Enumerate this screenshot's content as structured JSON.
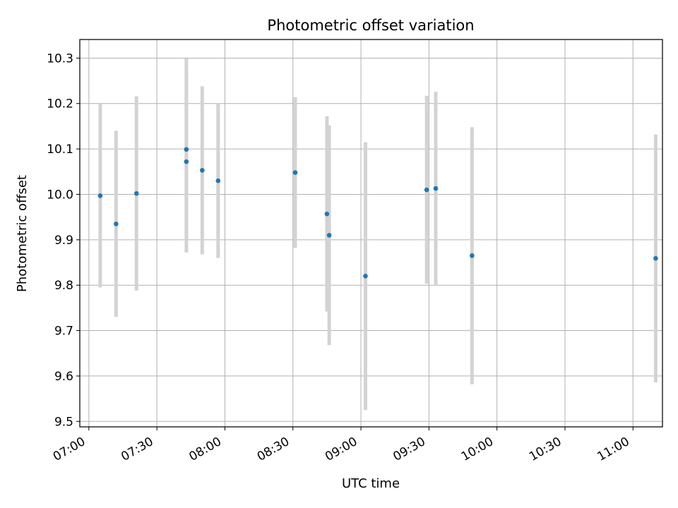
{
  "chart_data": {
    "type": "scatter",
    "title": "Photometric offset variation",
    "xlabel": "UTC time",
    "ylabel": "Photometric offset",
    "x_ticks": [
      "07:00",
      "07:30",
      "08:00",
      "08:30",
      "09:00",
      "09:30",
      "10:00",
      "10:30",
      "11:00"
    ],
    "y_ticks": [
      "9.5",
      "9.6",
      "9.7",
      "9.8",
      "9.9",
      "10.0",
      "10.1",
      "10.2",
      "10.3"
    ],
    "xlim": [
      "06:56",
      "11:13"
    ],
    "ylim": [
      9.488,
      10.341
    ],
    "grid": true,
    "point_color": "#1f77b4",
    "errorbar_color": "#d3d3d3",
    "series": [
      {
        "x": [
          "07:05",
          "07:12",
          "07:21",
          "07:43",
          "07:43",
          "07:50",
          "07:57",
          "08:31",
          "08:45",
          "08:46",
          "09:02",
          "09:29",
          "09:33",
          "09:49",
          "11:10"
        ],
        "y": [
          9.997,
          9.935,
          10.002,
          10.099,
          10.072,
          10.053,
          10.03,
          10.048,
          9.957,
          9.91,
          9.82,
          10.01,
          10.013,
          9.865,
          9.859
        ],
        "err": [
          0.202,
          0.205,
          0.214,
          0.2,
          0.2,
          0.185,
          0.17,
          0.166,
          0.215,
          0.242,
          0.295,
          0.207,
          0.213,
          0.283,
          0.273
        ]
      }
    ]
  }
}
